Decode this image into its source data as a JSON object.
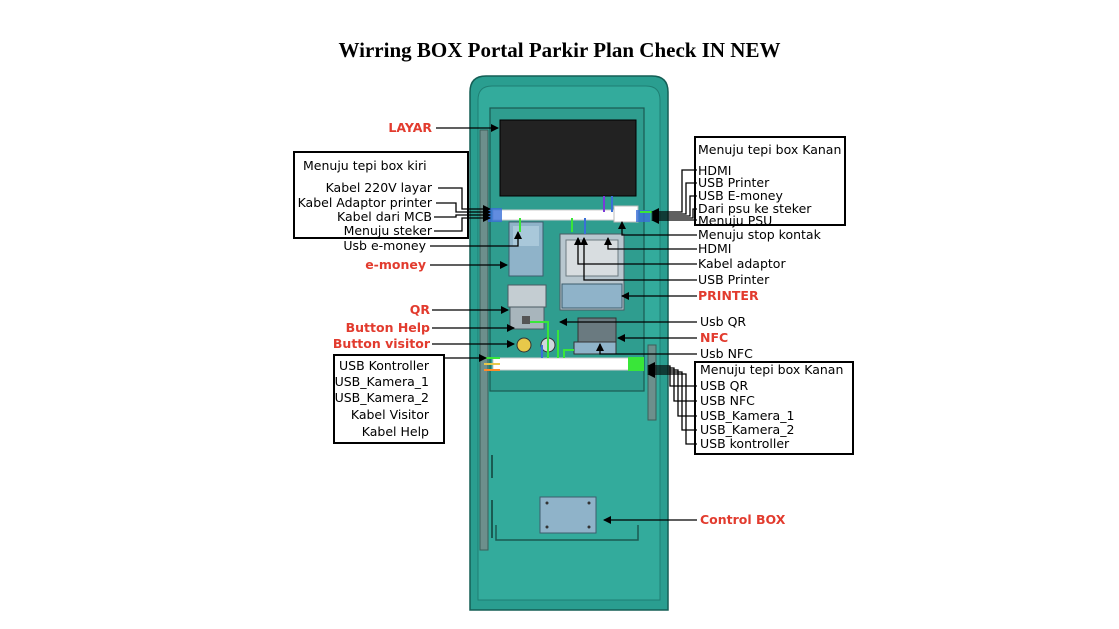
{
  "title": "Wirring BOX Portal Parkir Plan Check IN NEW",
  "colors": {
    "cabinet": "#2a9e90",
    "cabinet_dark": "#1f7f73",
    "label_red": "#e23b2e",
    "cable_green": "#39e639",
    "cable_blue": "#3a6fd8"
  },
  "left_labels": {
    "layar": "LAYAR",
    "usb_emoney": "Usb e-money",
    "emoney": "e-money",
    "qr": "QR",
    "button_help": "Button Help",
    "button_visitor": "Button visitor"
  },
  "left_box_top": {
    "header": "Menuju tepi box kiri",
    "items": [
      "Kabel 220V layar",
      "Kabel Adaptor printer",
      "Kabel dari MCB",
      "Menuju steker"
    ]
  },
  "left_box_bottom": {
    "items": [
      "USB Kontroller",
      "USB_Kamera_1",
      "USB_Kamera_2",
      "Kabel Visitor",
      "Kabel Help"
    ]
  },
  "right_box_top": {
    "header": "Menuju tepi box Kanan",
    "items": [
      "HDMI",
      "USB Printer",
      "USB E-money",
      "Dari psu ke steker",
      "Menuju PSU"
    ]
  },
  "right_labels": {
    "menuju_stop_kontak": "Menuju stop kontak",
    "hdmi": "HDMI",
    "kabel_adaptor": "Kabel adaptor",
    "usb_printer": "USB Printer",
    "printer": "PRINTER",
    "usb_qr": "Usb QR",
    "nfc": "NFC",
    "usb_nfc": "Usb NFC",
    "control_box": "Control BOX"
  },
  "right_box_bottom": {
    "header": "Menuju tepi box Kanan",
    "items": [
      "USB QR",
      "USB NFC",
      "USB_Kamera_1",
      "USB_Kamera_2",
      "USB kontroller"
    ]
  }
}
